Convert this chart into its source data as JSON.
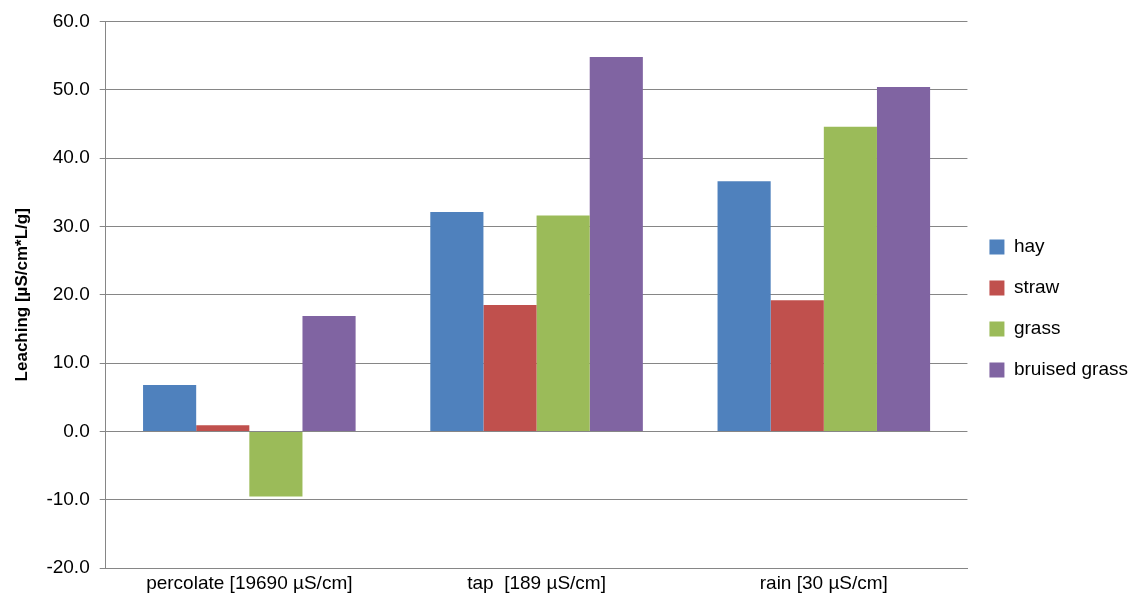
{
  "chart_data": {
    "type": "bar",
    "ylabel": "Leaching [µS/cm*L/g]",
    "categories": [
      "percolate [19690 µS/cm]",
      "tap  [189 µS/cm]",
      "rain [30 µS/cm]"
    ],
    "series": [
      {
        "name": "hay",
        "color": "#4f81bd",
        "values": [
          6.8,
          32.1,
          36.6
        ]
      },
      {
        "name": "straw",
        "color": "#c0504d",
        "values": [
          0.9,
          18.5,
          19.2
        ]
      },
      {
        "name": "grass",
        "color": "#9bbb59",
        "values": [
          -9.5,
          31.6,
          44.6
        ]
      },
      {
        "name": "bruised grass",
        "color": "#8064a2",
        "values": [
          16.9,
          54.8,
          50.4
        ]
      }
    ],
    "ylim": [
      -20,
      60
    ],
    "yticks": [
      {
        "value": -20,
        "label": "-20.0"
      },
      {
        "value": -10,
        "label": "-10.0"
      },
      {
        "value": 0,
        "label": "0.0"
      },
      {
        "value": 10,
        "label": "10.0"
      },
      {
        "value": 20,
        "label": "20.0"
      },
      {
        "value": 30,
        "label": "30.0"
      },
      {
        "value": 40,
        "label": "40.0"
      },
      {
        "value": 50,
        "label": "50.0"
      },
      {
        "value": 60,
        "label": "60.0"
      }
    ],
    "grid": "y",
    "legend": "right"
  }
}
